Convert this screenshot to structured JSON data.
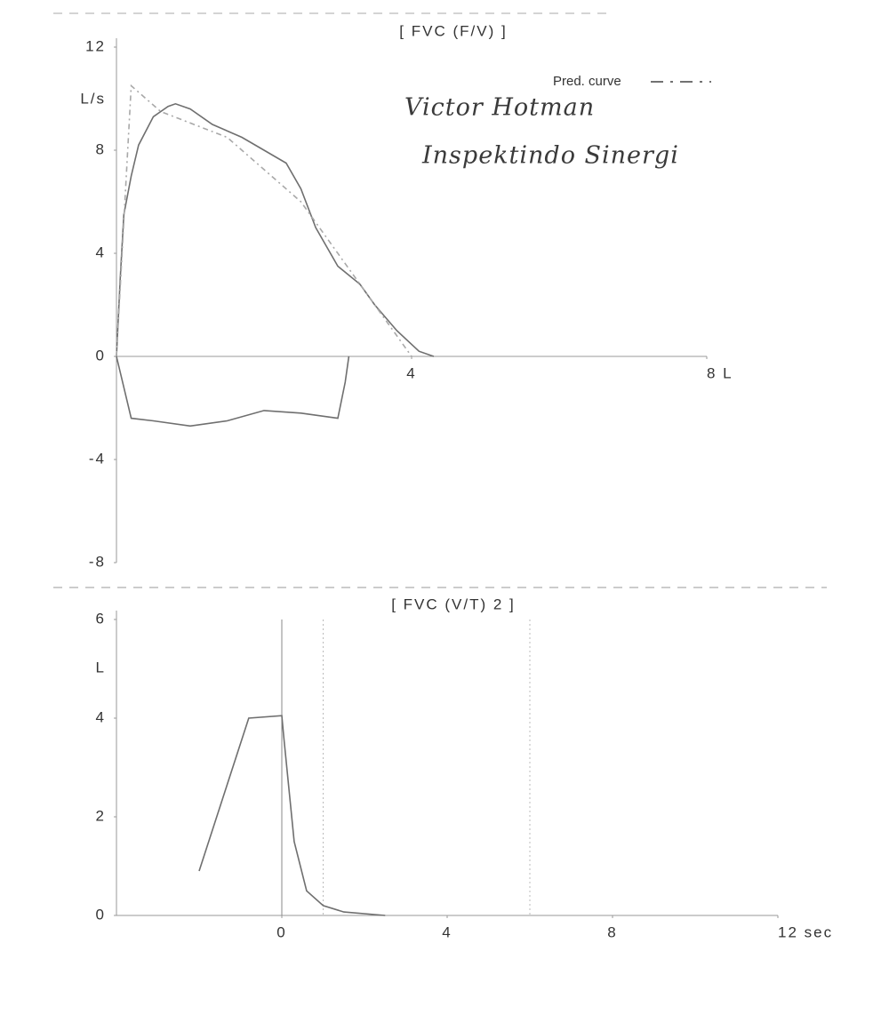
{
  "chart_data": [
    {
      "type": "line",
      "title": "[ FVC (F/V) ]",
      "y_label": "L/s",
      "xlim": [
        0,
        8
      ],
      "xticks": [
        4,
        {
          "value": 8,
          "label": "8 L"
        }
      ],
      "ylim": [
        -8,
        12
      ],
      "yticks": [
        12,
        8,
        4,
        0,
        -4,
        -8
      ],
      "annotations": [
        "Victor Hotman",
        "Inspektindo Sinergi"
      ],
      "legend": "top-right",
      "series": [
        {
          "color": "#6f6f6f",
          "style": "solid",
          "x": [
            0,
            0.05,
            0.1,
            0.2,
            0.3,
            0.5,
            0.7,
            0.8,
            1.0,
            1.3,
            1.7,
            2.0,
            2.3,
            2.5,
            2.7,
            3.0,
            3.3,
            3.5,
            3.8,
            4.1,
            4.3
          ],
          "values": [
            0,
            3,
            5.5,
            7,
            8.2,
            9.3,
            9.7,
            9.8,
            9.6,
            9,
            8.5,
            8,
            7.5,
            6.5,
            5,
            3.5,
            2.8,
            2,
            1,
            0.2,
            0
          ]
        },
        {
          "name": "Pred. curve",
          "color": "#a8a8a8",
          "style": "dashdot",
          "x": [
            0,
            0.2,
            0.6,
            1.5,
            2.5,
            3.5,
            4
          ],
          "values": [
            0,
            10.5,
            9.5,
            8.5,
            6,
            2,
            0
          ]
        },
        {
          "color": "#6f6f6f",
          "style": "solid",
          "x": [
            0,
            0.2,
            0.5,
            1,
            1.5,
            2,
            2.5,
            3,
            3.1,
            3.15
          ],
          "values": [
            0,
            -2.4,
            -2.5,
            -2.7,
            -2.5,
            -2.1,
            -2.2,
            -2.4,
            -1,
            0
          ]
        }
      ]
    },
    {
      "type": "line",
      "title": "[ FVC (V/T) 2 ]",
      "y_label": "L",
      "xlim": [
        -4,
        12
      ],
      "xticks": [
        0,
        4,
        8,
        {
          "value": 12,
          "label": "12 sec"
        }
      ],
      "ylim": [
        0,
        6
      ],
      "yticks": [
        0,
        2,
        4,
        6
      ],
      "vlines": [
        1,
        6
      ],
      "series": [
        {
          "color": "#6f6f6f",
          "style": "solid",
          "x": [
            -2,
            -0.8,
            0,
            0.05,
            0.3,
            0.6,
            1,
            1.5,
            2.5
          ],
          "values": [
            0.9,
            4,
            4.05,
            3.6,
            1.5,
            0.5,
            0.2,
            0.07,
            0
          ]
        }
      ]
    }
  ]
}
